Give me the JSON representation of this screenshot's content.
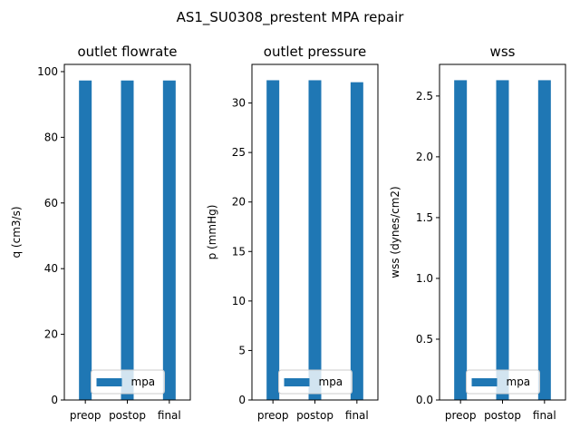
{
  "figure": {
    "suptitle": "AS1_SU0308_prestent MPA repair",
    "bar_color": "#1f77b4"
  },
  "chart_data": [
    {
      "type": "bar",
      "title": "outlet flowrate",
      "xlabel": "",
      "ylabel": "q (cm3/s)",
      "categories": [
        "preop",
        "postop",
        "final"
      ],
      "series": [
        {
          "name": "mpa",
          "values": [
            97.3,
            97.3,
            97.3
          ]
        }
      ],
      "ylim": [
        0,
        102.2
      ],
      "yticks": [
        0,
        20,
        40,
        60,
        80,
        100
      ],
      "ytick_labels": [
        "0",
        "20",
        "40",
        "60",
        "80",
        "100"
      ],
      "legend": "lower center",
      "grid": false
    },
    {
      "type": "bar",
      "title": "outlet pressure",
      "xlabel": "",
      "ylabel": "p (mmHg)",
      "categories": [
        "preop",
        "postop",
        "final"
      ],
      "series": [
        {
          "name": "mpa",
          "values": [
            32.3,
            32.3,
            32.1
          ]
        }
      ],
      "ylim": [
        0,
        33.9
      ],
      "yticks": [
        0,
        5,
        10,
        15,
        20,
        25,
        30
      ],
      "ytick_labels": [
        "0",
        "5",
        "10",
        "15",
        "20",
        "25",
        "30"
      ],
      "legend": "lower center",
      "grid": false
    },
    {
      "type": "bar",
      "title": "wss",
      "xlabel": "",
      "ylabel": "wss (dynes/cm2)",
      "categories": [
        "preop",
        "postop",
        "final"
      ],
      "series": [
        {
          "name": "mpa",
          "values": [
            2.63,
            2.63,
            2.63
          ]
        }
      ],
      "ylim": [
        0,
        2.76
      ],
      "yticks": [
        0,
        0.5,
        1.0,
        1.5,
        2.0,
        2.5
      ],
      "ytick_labels": [
        "0.0",
        "0.5",
        "1.0",
        "1.5",
        "2.0",
        "2.5"
      ],
      "legend": "lower center",
      "grid": false
    }
  ]
}
